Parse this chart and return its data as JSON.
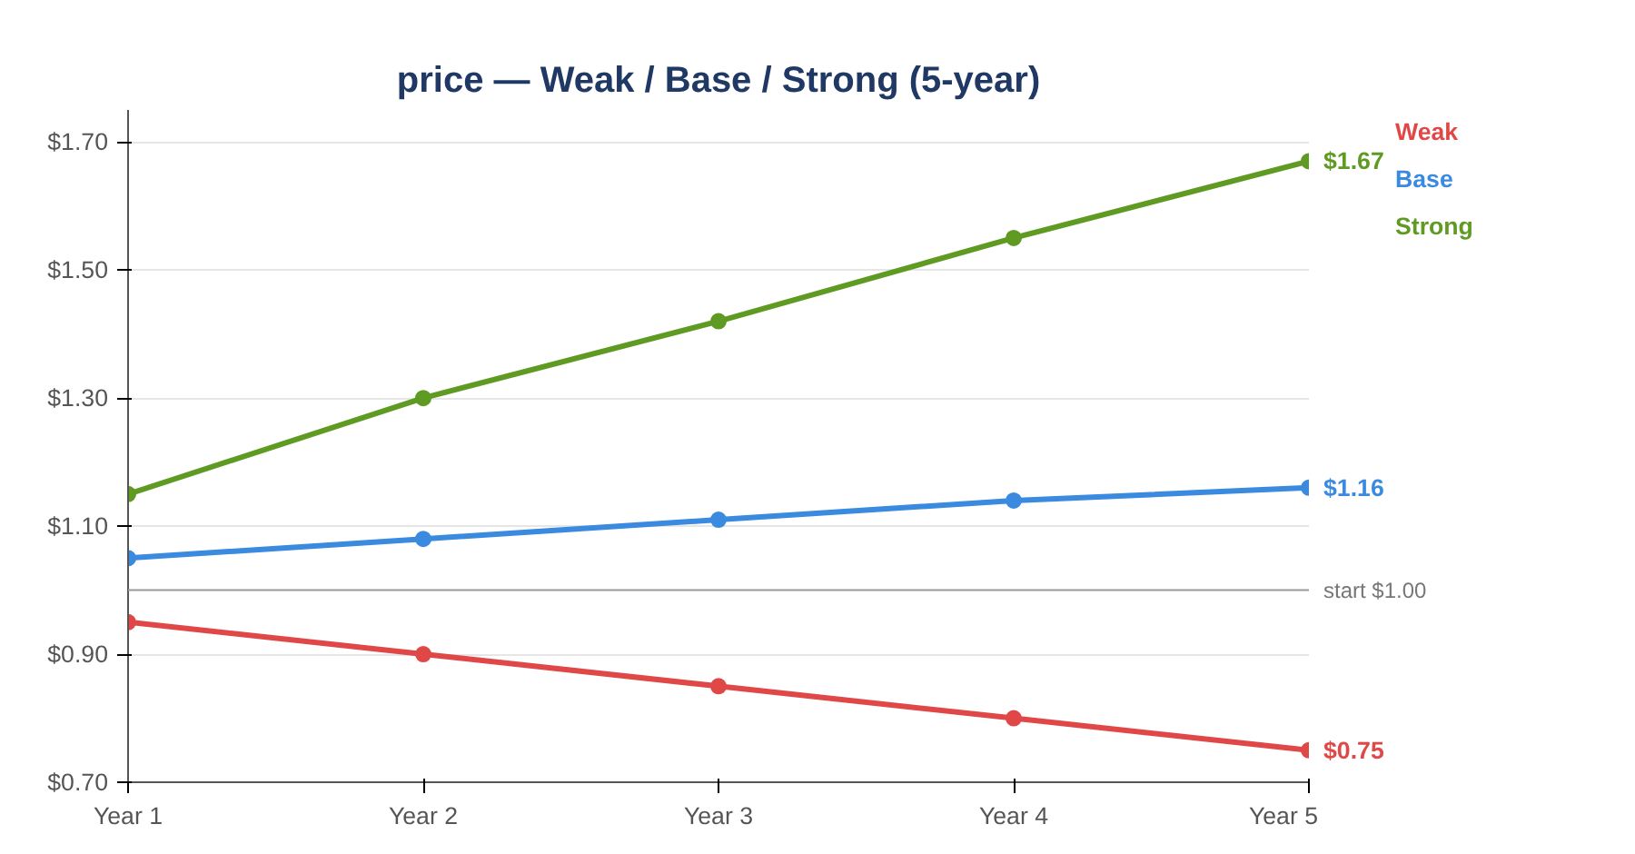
{
  "chart_data": {
    "type": "line",
    "title": "price — Weak / Base / Strong (5-year)",
    "categories": [
      "Year 1",
      "Year 2",
      "Year 3",
      "Year 4",
      "Year 5"
    ],
    "series": [
      {
        "name": "Weak",
        "color": "#e04848",
        "values": [
          0.95,
          0.9,
          0.85,
          0.8,
          0.75
        ],
        "value_labels": [
          null,
          null,
          null,
          null,
          "$0.75"
        ]
      },
      {
        "name": "Base",
        "color": "#3a8ae0",
        "values": [
          1.05,
          1.08,
          1.11,
          1.14,
          1.16
        ],
        "value_labels": [
          null,
          null,
          null,
          null,
          "$1.16"
        ]
      },
      {
        "name": "Strong",
        "color": "#5f9a22",
        "values": [
          1.15,
          1.3,
          1.42,
          1.55,
          1.67
        ],
        "value_labels": [
          null,
          null,
          null,
          null,
          "$1.67"
        ]
      }
    ],
    "ylim": [
      0.7,
      1.75
    ],
    "yticks": [
      {
        "value": 0.7,
        "label": "$0.70"
      },
      {
        "value": 0.9,
        "label": "$0.90"
      },
      {
        "value": 1.1,
        "label": "$1.10"
      },
      {
        "value": 1.3,
        "label": "$1.30"
      },
      {
        "value": 1.5,
        "label": "$1.50"
      },
      {
        "value": 1.7,
        "label": "$1.70"
      }
    ],
    "ref_lines": [
      {
        "axis": "y",
        "value": 1.0,
        "label": "start $1.00",
        "color": "#999999"
      }
    ],
    "grid": "y",
    "legend": "top right",
    "marker": "circle",
    "line_style": "solid"
  }
}
